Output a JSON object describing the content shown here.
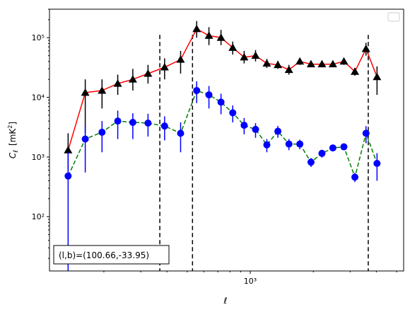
{
  "chart_data": {
    "type": "scatter",
    "xscale": "log",
    "yscale": "log",
    "xlim": [
      110,
      5400
    ],
    "ylim": [
      12.3,
      300000
    ],
    "xticks": [
      {
        "value": 1000,
        "label": "10³"
      }
    ],
    "yticks": [
      {
        "value": 100,
        "label": "10²"
      },
      {
        "value": 1000,
        "label": "10³"
      },
      {
        "value": 10000,
        "label": "10⁴"
      },
      {
        "value": 100000,
        "label": "10⁵"
      }
    ],
    "xlabel": "ℓ",
    "ylabel": "C",
    "ylabel_sub": "ℓ",
    "ylabel_unit": "[mK",
    "ylabel_unit_sup": "2",
    "ylabel_unit_close": "]",
    "vlines": [
      370,
      530,
      3660
    ],
    "annotation": {
      "text": "(l,b)=(100.66,-33.95)"
    },
    "legend": {
      "position": "top-right",
      "entries": []
    },
    "series": [
      {
        "color": "#ff0000",
        "line_style": "solid",
        "marker": "triangle",
        "marker_color": "#000000",
        "errorbar_color": "#000000",
        "points": [
          {
            "x": 135,
            "y": 1300,
            "lo": 600,
            "hi": 2500
          },
          {
            "x": 163,
            "y": 12000,
            "lo": 2500,
            "hi": 20000
          },
          {
            "x": 196,
            "y": 13000,
            "lo": 6500,
            "hi": 20000
          },
          {
            "x": 233,
            "y": 17000,
            "lo": 11000,
            "hi": 24000
          },
          {
            "x": 275,
            "y": 20000,
            "lo": 13000,
            "hi": 30000
          },
          {
            "x": 325,
            "y": 25000,
            "lo": 17000,
            "hi": 35000
          },
          {
            "x": 390,
            "y": 32000,
            "lo": 20000,
            "hi": 45000
          },
          {
            "x": 465,
            "y": 43000,
            "lo": 25000,
            "hi": 60000
          },
          {
            "x": 555,
            "y": 140000,
            "lo": 100000,
            "hi": 190000
          },
          {
            "x": 635,
            "y": 108000,
            "lo": 75000,
            "hi": 150000
          },
          {
            "x": 725,
            "y": 100000,
            "lo": 75000,
            "hi": 135000
          },
          {
            "x": 825,
            "y": 68000,
            "lo": 52000,
            "hi": 86000
          },
          {
            "x": 935,
            "y": 47000,
            "lo": 37000,
            "hi": 60000
          },
          {
            "x": 1060,
            "y": 50000,
            "lo": 40000,
            "hi": 62000
          },
          {
            "x": 1200,
            "y": 37000,
            "lo": 31000,
            "hi": 44000
          },
          {
            "x": 1355,
            "y": 35000,
            "lo": 30000,
            "hi": 41000
          },
          {
            "x": 1530,
            "y": 29000,
            "lo": 24000,
            "hi": 35000
          },
          {
            "x": 1725,
            "y": 40000,
            "lo": 35000,
            "hi": 45000
          },
          {
            "x": 1950,
            "y": 36000,
            "lo": 32000,
            "hi": 40000
          },
          {
            "x": 2200,
            "y": 36000,
            "lo": 32000,
            "hi": 40000
          },
          {
            "x": 2480,
            "y": 36000,
            "lo": 32000,
            "hi": 40000
          },
          {
            "x": 2800,
            "y": 40000,
            "lo": 35000,
            "hi": 45000
          },
          {
            "x": 3160,
            "y": 27000,
            "lo": 23000,
            "hi": 31000
          },
          {
            "x": 3570,
            "y": 65000,
            "lo": 50000,
            "hi": 82000
          },
          {
            "x": 4030,
            "y": 22000,
            "lo": 11000,
            "hi": 33000
          }
        ]
      },
      {
        "color": "#008000",
        "line_style": "dashed",
        "marker": "circle",
        "marker_color": "#0000ff",
        "errorbar_color": "#0000ff",
        "points": [
          {
            "x": 135,
            "y": 480,
            "lo": 12.3,
            "hi": 1200
          },
          {
            "x": 163,
            "y": 2000,
            "lo": 550,
            "hi": 3500
          },
          {
            "x": 196,
            "y": 2600,
            "lo": 1200,
            "hi": 4000
          },
          {
            "x": 233,
            "y": 4000,
            "lo": 2000,
            "hi": 6000
          },
          {
            "x": 275,
            "y": 3800,
            "lo": 2000,
            "hi": 5400
          },
          {
            "x": 325,
            "y": 3700,
            "lo": 2200,
            "hi": 5300
          },
          {
            "x": 390,
            "y": 3300,
            "lo": 1900,
            "hi": 4800
          },
          {
            "x": 465,
            "y": 2500,
            "lo": 1200,
            "hi": 3800
          },
          {
            "x": 555,
            "y": 13000,
            "lo": 8000,
            "hi": 18500
          },
          {
            "x": 635,
            "y": 11000,
            "lo": 6500,
            "hi": 15500
          },
          {
            "x": 725,
            "y": 8300,
            "lo": 5200,
            "hi": 11500
          },
          {
            "x": 825,
            "y": 5500,
            "lo": 3800,
            "hi": 7300
          },
          {
            "x": 935,
            "y": 3400,
            "lo": 2400,
            "hi": 4500
          },
          {
            "x": 1060,
            "y": 2900,
            "lo": 2100,
            "hi": 3700
          },
          {
            "x": 1200,
            "y": 1600,
            "lo": 1200,
            "hi": 2000
          },
          {
            "x": 1355,
            "y": 2700,
            "lo": 2100,
            "hi": 3300
          },
          {
            "x": 1530,
            "y": 1650,
            "lo": 1300,
            "hi": 2000
          },
          {
            "x": 1725,
            "y": 1650,
            "lo": 1350,
            "hi": 1950
          },
          {
            "x": 1950,
            "y": 820,
            "lo": 680,
            "hi": 960
          },
          {
            "x": 2200,
            "y": 1150,
            "lo": 980,
            "hi": 1320
          },
          {
            "x": 2480,
            "y": 1420,
            "lo": 1250,
            "hi": 1600
          },
          {
            "x": 2800,
            "y": 1480,
            "lo": 1300,
            "hi": 1650
          },
          {
            "x": 3160,
            "y": 460,
            "lo": 380,
            "hi": 540
          },
          {
            "x": 3570,
            "y": 2500,
            "lo": 1700,
            "hi": 3300
          },
          {
            "x": 4030,
            "y": 780,
            "lo": 400,
            "hi": 1160
          }
        ]
      }
    ]
  }
}
